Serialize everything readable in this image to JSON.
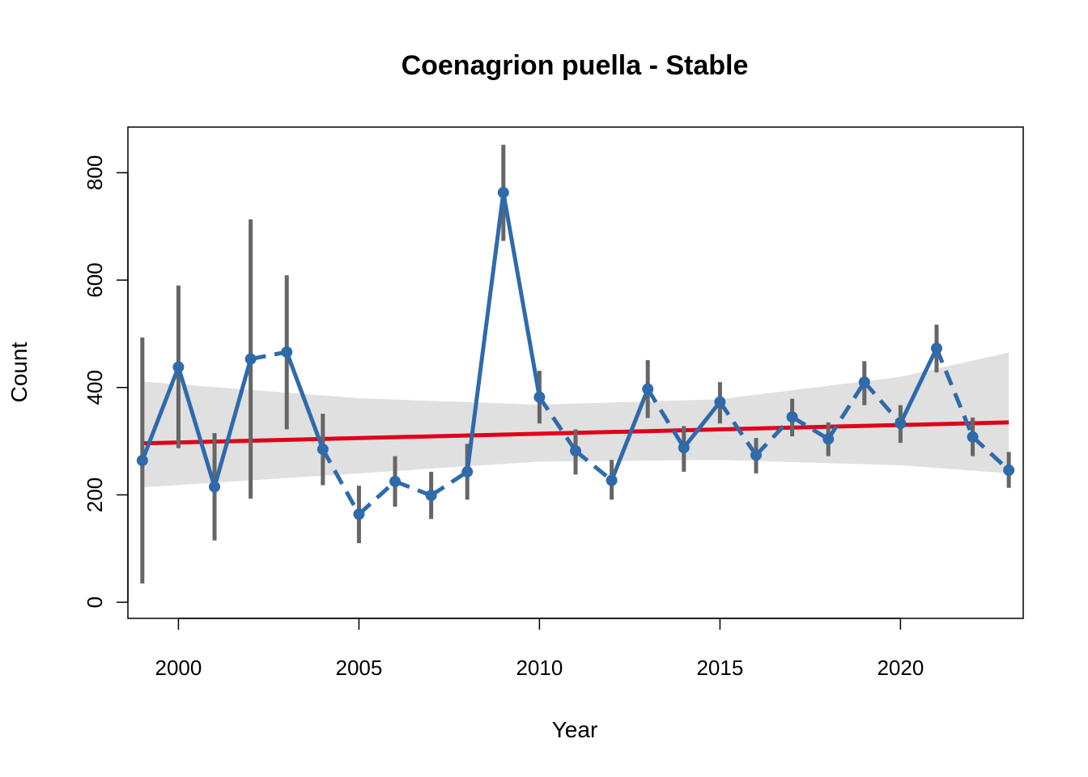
{
  "chart_data": {
    "type": "line",
    "title": "Coenagrion puella - Stable",
    "xlabel": "Year",
    "ylabel": "Count",
    "xlim": [
      1998.6,
      2023.4
    ],
    "ylim": [
      -30,
      885
    ],
    "x_ticks": [
      2000,
      2005,
      2010,
      2015,
      2020
    ],
    "y_ticks": [
      0,
      200,
      400,
      600,
      800
    ],
    "grid": false,
    "legend": "none",
    "colors": {
      "series": "#2F6AAB",
      "error_bars": "#666666",
      "trend": "#E0001A",
      "confidence_band": "#E0E0E0"
    },
    "series": [
      {
        "x": [
          1999,
          2000,
          2001,
          2002,
          2003,
          2004,
          2005,
          2006,
          2007,
          2008,
          2009,
          2010,
          2011,
          2012,
          2013,
          2014,
          2015,
          2016,
          2017,
          2018,
          2019,
          2020,
          2021,
          2022,
          2023
        ],
        "values": [
          264,
          438,
          215,
          453,
          466,
          285,
          164,
          225,
          199,
          243,
          763,
          382,
          282,
          227,
          397,
          288,
          373,
          274,
          345,
          304,
          410,
          333,
          473,
          308,
          246
        ],
        "lower": [
          35,
          287,
          115,
          193,
          322,
          218,
          110,
          178,
          155,
          191,
          673,
          333,
          238,
          191,
          343,
          243,
          333,
          240,
          309,
          272,
          367,
          297,
          428,
          272,
          213
        ],
        "upper": [
          493,
          590,
          315,
          713,
          609,
          351,
          217,
          272,
          243,
          295,
          852,
          431,
          322,
          265,
          451,
          328,
          410,
          306,
          379,
          335,
          449,
          367,
          517,
          344,
          280
        ],
        "connector_style": [
          "solid",
          "solid",
          "solid",
          "dashed",
          "solid",
          "dashed",
          "dashed",
          "dashed",
          "dashed",
          "solid",
          "solid",
          "dashed",
          "dashed",
          "solid",
          "dashed",
          "solid",
          "dashed",
          "dashed",
          "dashed",
          "dashed",
          "dashed",
          "solid",
          "dashed",
          "dashed"
        ]
      }
    ],
    "trend": {
      "x": [
        1999,
        2023
      ],
      "y": [
        296,
        335
      ]
    },
    "confidence_band": {
      "x": [
        1999,
        2005,
        2010,
        2015,
        2020,
        2023
      ],
      "lower": [
        214,
        240,
        262,
        265,
        255,
        240
      ],
      "upper": [
        411,
        380,
        368,
        378,
        420,
        465
      ]
    }
  }
}
